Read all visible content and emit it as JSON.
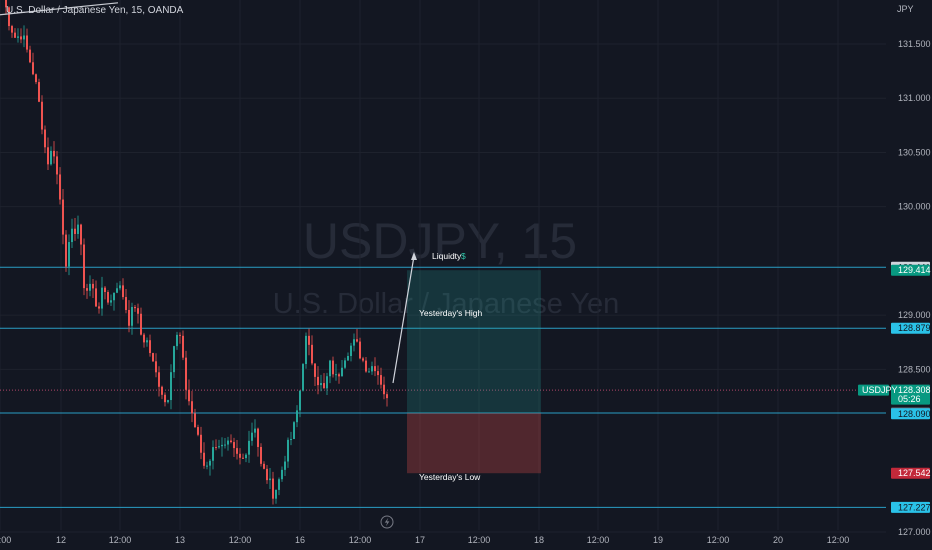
{
  "header": {
    "legend": "U.S. Dollar / Japanese Yen, 15, OANDA",
    "currency": "JPY"
  },
  "watermark": {
    "line1": "USDJPY, 15",
    "line2": "U.S. Dollar / Japanese Yen"
  },
  "chart_data": {
    "type": "candlestick",
    "y_tick_labels": [
      "131.500",
      "131.000",
      "130.500",
      "130.000",
      "129.000",
      "128.500",
      "127.000"
    ],
    "x_tick_labels": [
      "00:00",
      "12",
      "12:00",
      "13",
      "12:00",
      "16",
      "12:00",
      "17",
      "12:00",
      "18",
      "12:00",
      "19",
      "12:00",
      "20",
      "12:00"
    ],
    "ylim": [
      126.75,
      131.95
    ],
    "colors": {
      "up": "#26a69a",
      "down": "#ef5350",
      "line": "#2a9ec4"
    },
    "series": [
      {
        "price_path": [
          131.95,
          131.7,
          131.55,
          131.6,
          131.4,
          131.2,
          130.85,
          130.4,
          130.55,
          130.1,
          129.5,
          129.75,
          129.85,
          129.2,
          129.3,
          129.05,
          129.25,
          129.1,
          129.3,
          129.2,
          128.95,
          129.1,
          128.8,
          128.75,
          128.5,
          128.35,
          128.15,
          128.7,
          128.85,
          128.35,
          128.1,
          127.85,
          127.6,
          127.7,
          127.85,
          127.75,
          127.8,
          127.7,
          127.65,
          127.85,
          128.0,
          127.6,
          127.5,
          127.35,
          127.5,
          127.75,
          127.9,
          128.2,
          128.8,
          128.6,
          128.4,
          128.3,
          128.55,
          128.4,
          128.6,
          128.7,
          128.75,
          128.6,
          128.5,
          128.55,
          128.4,
          128.2
        ]
      }
    ],
    "levels": [
      {
        "value": 129.441,
        "color": "#2a9ec4"
      },
      {
        "value": 128.879,
        "color": "#2a9ec4"
      },
      {
        "value": 128.097,
        "color": "#2a9ec4"
      },
      {
        "value": 127.227,
        "color": "#2a9ec4"
      }
    ],
    "trendline": {
      "from": [
        0.0,
        131.77
      ],
      "to": [
        118.0,
        131.88
      ]
    },
    "current_price": {
      "value": 128.308
    },
    "position": {
      "entry": 128.097,
      "target": 129.414,
      "stop": 127.542,
      "start_bar": 100,
      "end_bar": 134
    },
    "annotations": {
      "liquidity": "Liquidty",
      "liquidity_icon": "$",
      "yesterday_high": "Yesterday's High",
      "yesterday_low": "Yesterday's Low"
    },
    "price_tags": [
      {
        "label": "129.441",
        "value": 129.441,
        "bg": "#d1d4dc",
        "fg": "#131722"
      },
      {
        "label": "129.414",
        "value": 129.414,
        "bg": "#089981",
        "fg": "#ffffff"
      },
      {
        "label": "128.879",
        "value": 128.879,
        "bg": "#2ac2e8",
        "fg": "#131722"
      },
      {
        "label": "128.308",
        "value": 128.308,
        "bg": "#089981",
        "fg": "#ffffff",
        "sub": "05:26"
      },
      {
        "label": "128.097",
        "value": 128.097,
        "bg": "#6a6d78",
        "fg": "#ffffff"
      },
      {
        "label": "128.090",
        "value": 128.09,
        "bg": "#2ac2e8",
        "fg": "#131722"
      },
      {
        "label": "127.542",
        "value": 127.542,
        "bg": "#c2293a",
        "fg": "#ffffff"
      },
      {
        "label": "127.227",
        "value": 127.227,
        "bg": "#2ac2e8",
        "fg": "#131722"
      }
    ],
    "symbol_badge": "USDJPY"
  },
  "footer": {
    "lightning_icon": "lightning-icon"
  }
}
